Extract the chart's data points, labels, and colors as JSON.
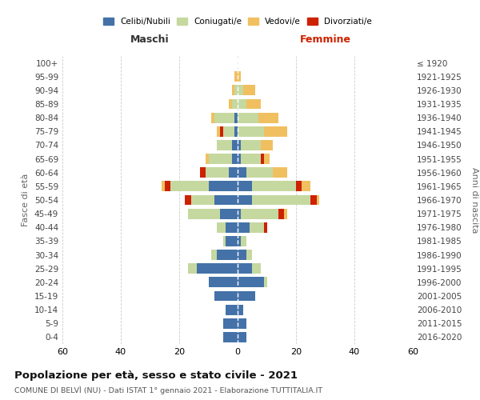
{
  "age_groups": [
    "0-4",
    "5-9",
    "10-14",
    "15-19",
    "20-24",
    "25-29",
    "30-34",
    "35-39",
    "40-44",
    "45-49",
    "50-54",
    "55-59",
    "60-64",
    "65-69",
    "70-74",
    "75-79",
    "80-84",
    "85-89",
    "90-94",
    "95-99",
    "100+"
  ],
  "birth_years": [
    "2016-2020",
    "2011-2015",
    "2006-2010",
    "2001-2005",
    "1996-2000",
    "1991-1995",
    "1986-1990",
    "1981-1985",
    "1976-1980",
    "1971-1975",
    "1966-1970",
    "1961-1965",
    "1956-1960",
    "1951-1955",
    "1946-1950",
    "1941-1945",
    "1936-1940",
    "1931-1935",
    "1926-1930",
    "1921-1925",
    "≤ 1920"
  ],
  "male": {
    "celibi": [
      5,
      5,
      4,
      8,
      10,
      14,
      7,
      4,
      4,
      6,
      8,
      10,
      3,
      2,
      2,
      1,
      1,
      0,
      0,
      0,
      0
    ],
    "coniugati": [
      0,
      0,
      0,
      0,
      0,
      3,
      2,
      1,
      3,
      11,
      8,
      13,
      8,
      8,
      5,
      4,
      7,
      2,
      1,
      0,
      0
    ],
    "vedovi": [
      0,
      0,
      0,
      0,
      0,
      0,
      0,
      0,
      0,
      0,
      0,
      1,
      0,
      1,
      0,
      1,
      1,
      1,
      1,
      1,
      0
    ],
    "divorziati": [
      0,
      0,
      0,
      0,
      0,
      0,
      0,
      0,
      0,
      0,
      2,
      2,
      2,
      0,
      0,
      1,
      0,
      0,
      0,
      0,
      0
    ]
  },
  "female": {
    "nubili": [
      3,
      3,
      2,
      6,
      9,
      5,
      3,
      1,
      4,
      1,
      5,
      5,
      3,
      1,
      1,
      0,
      0,
      0,
      0,
      0,
      0
    ],
    "coniugate": [
      0,
      0,
      0,
      0,
      1,
      3,
      2,
      2,
      5,
      13,
      20,
      15,
      9,
      7,
      7,
      9,
      7,
      3,
      2,
      0,
      0
    ],
    "vedove": [
      0,
      0,
      0,
      0,
      0,
      0,
      0,
      0,
      0,
      1,
      1,
      3,
      5,
      2,
      4,
      8,
      7,
      5,
      4,
      1,
      0
    ],
    "divorziate": [
      0,
      0,
      0,
      0,
      0,
      0,
      0,
      0,
      1,
      2,
      2,
      2,
      0,
      1,
      0,
      0,
      0,
      0,
      0,
      0,
      0
    ]
  },
  "colors": {
    "celibi": "#4472a8",
    "coniugati": "#c5d8a0",
    "vedovi": "#f0c060",
    "divorziati": "#cc2200"
  },
  "xlim": 60,
  "title": "Popolazione per età, sesso e stato civile - 2021",
  "subtitle": "COMUNE DI BELVÌ (NU) - Dati ISTAT 1° gennaio 2021 - Elaborazione TUTTITALIA.IT",
  "ylabel_left": "Fasce di età",
  "ylabel_right": "Anni di nascita",
  "legend_labels": [
    "Celibi/Nubili",
    "Coniugati/e",
    "Vedovi/e",
    "Divorziati/e"
  ],
  "maschi_label": "Maschi",
  "femmine_label": "Femmine"
}
